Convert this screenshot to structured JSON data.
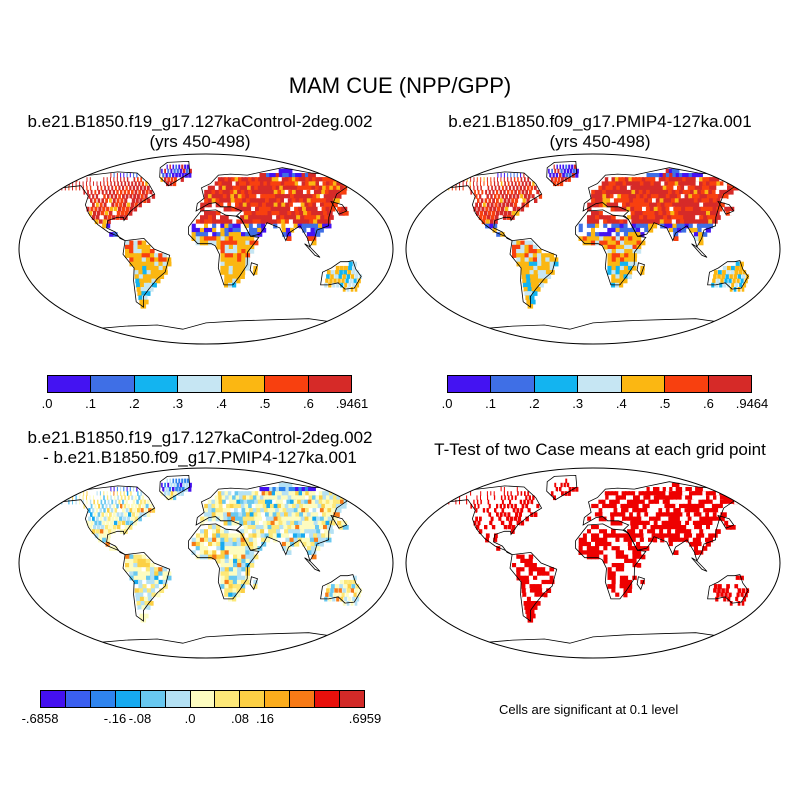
{
  "title": "MAM CUE (NPP/GPP)",
  "panels": {
    "top_left": {
      "line1": "b.e21.B1850.f19_g17.127kaControl-2deg.002",
      "line2": "(yrs 450-498)"
    },
    "top_right": {
      "line1": "b.e21.B1850.f09_g17.PMIP4-127ka.001",
      "line2": "(yrs 450-498)"
    },
    "bottom_left": {
      "line1": "b.e21.B1850.f19_g17.127kaControl-2deg.002",
      "line2": "- b.e21.B1850.f09_g17.PMIP4-127ka.001"
    },
    "bottom_right": {
      "line1": "T-Test of two Case means at each grid point"
    }
  },
  "colorbars": {
    "cue_left": {
      "colors": [
        "#4413f2",
        "#3f6fe6",
        "#13b4f0",
        "#c6e6f3",
        "#fbb712",
        "#f8400f",
        "#d62a28"
      ],
      "labels": [
        ".0",
        ".1",
        ".2",
        ".3",
        ".4",
        ".5",
        ".6",
        ".9461"
      ]
    },
    "cue_right": {
      "colors": [
        "#4413f2",
        "#3f6fe6",
        "#13b4f0",
        "#c6e6f3",
        "#fbb712",
        "#f8400f",
        "#d62a28"
      ],
      "labels": [
        ".0",
        ".1",
        ".2",
        ".3",
        ".4",
        ".5",
        ".6",
        ".9464"
      ]
    },
    "diff": {
      "colors": [
        "#4410f0",
        "#3a5ff0",
        "#2f84ee",
        "#16aaf0",
        "#68c8f0",
        "#b4e1f4",
        "#fdfcc0",
        "#fde878",
        "#fcd045",
        "#fbac1c",
        "#f77a16",
        "#e8100c",
        "#d22a28"
      ],
      "labels": [
        "-.6858",
        "-.16",
        "-.08",
        ".0",
        ".08",
        ".16",
        ".6959"
      ]
    }
  },
  "note": "Cells are significant at 0.1 level"
}
